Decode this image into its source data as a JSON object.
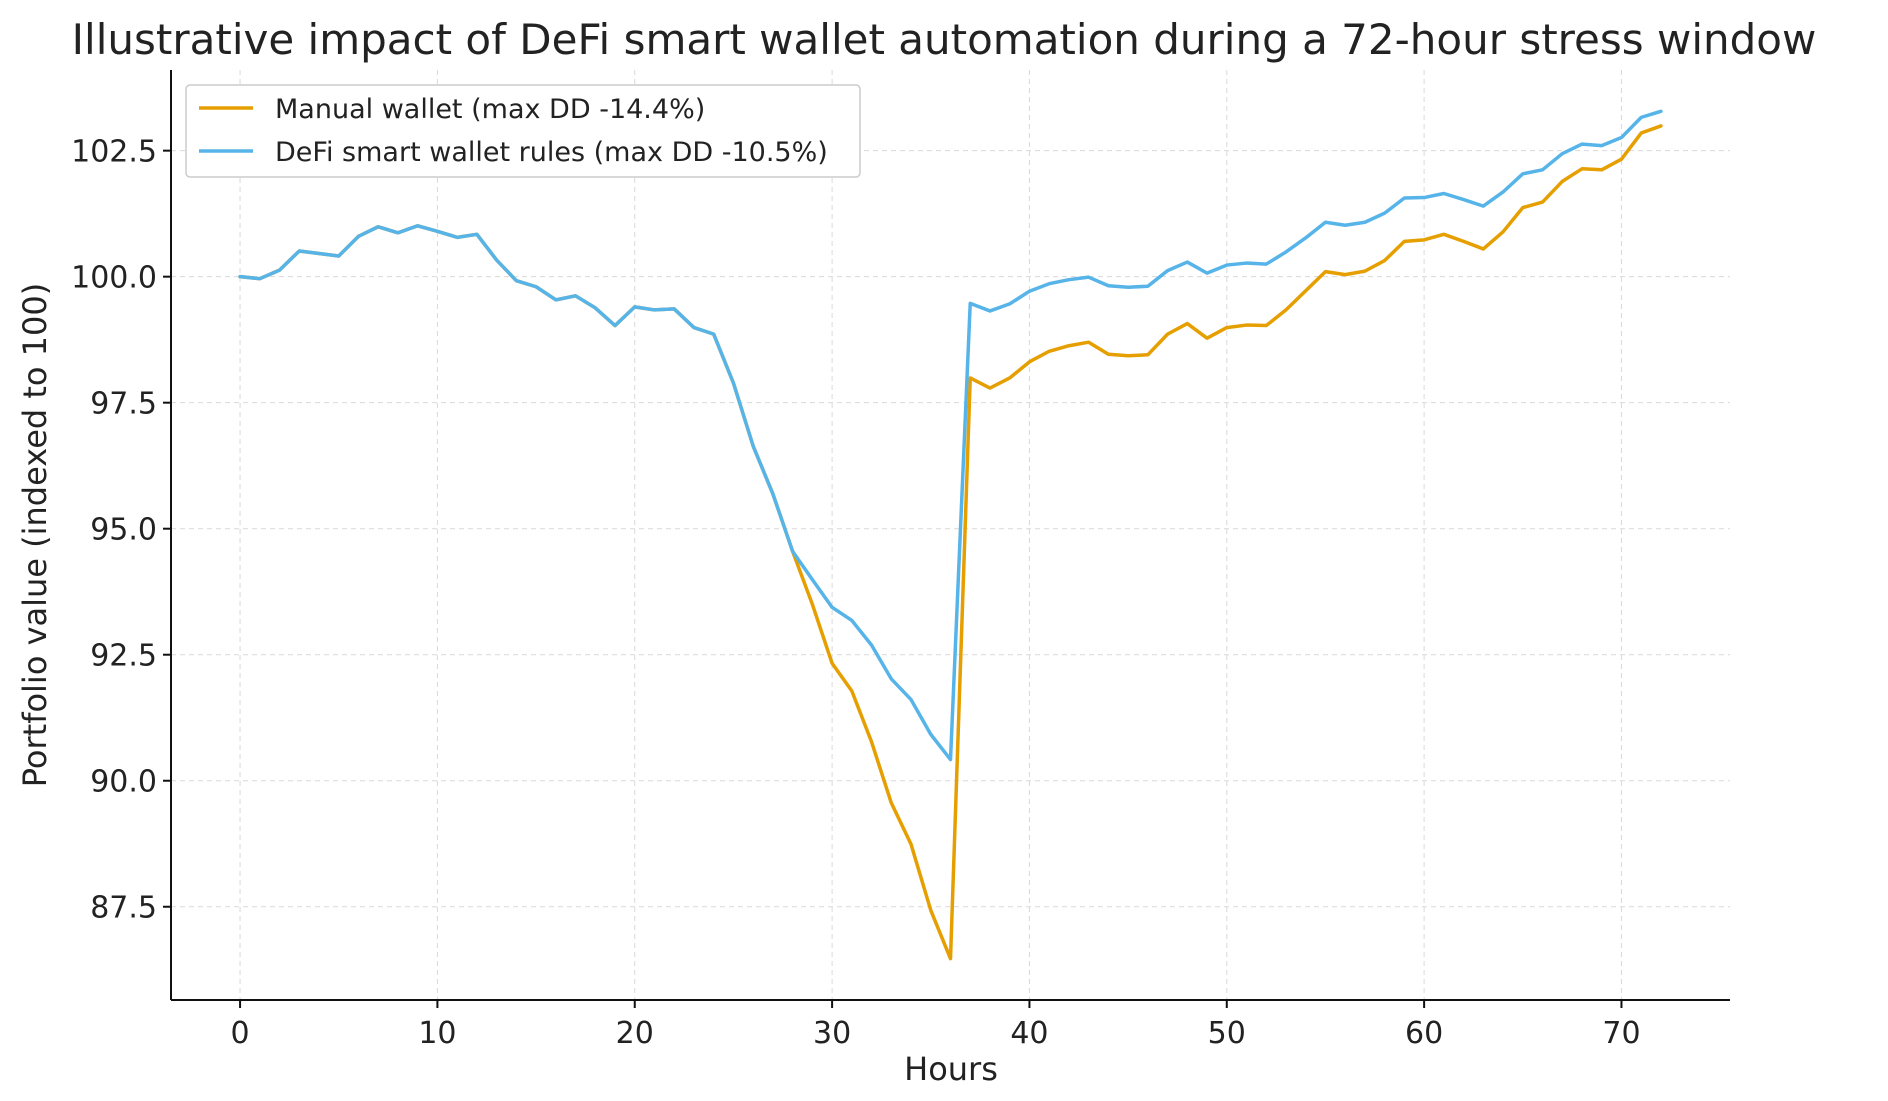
{
  "chart_data": {
    "type": "line",
    "title": "Illustrative impact of DeFi smart wallet automation during a 72-hour stress window",
    "xlabel": "Hours",
    "ylabel": "Portfolio value (indexed to 100)",
    "xlim": [
      -3.5,
      75.5
    ],
    "ylim": [
      85.65,
      104.1
    ],
    "xticks": [
      0,
      10,
      20,
      30,
      40,
      50,
      60,
      70
    ],
    "yticks": [
      87.5,
      90.0,
      92.5,
      95.0,
      97.5,
      100.0,
      102.5
    ],
    "grid": true,
    "legend_position": "top-left",
    "x": [
      0,
      1,
      2,
      3,
      4,
      5,
      6,
      7,
      8,
      9,
      10,
      11,
      12,
      13,
      14,
      15,
      16,
      17,
      18,
      19,
      20,
      21,
      22,
      23,
      24,
      25,
      26,
      27,
      28,
      29,
      30,
      31,
      32,
      33,
      34,
      35,
      36,
      37,
      38,
      39,
      40,
      41,
      42,
      43,
      44,
      45,
      46,
      47,
      48,
      49,
      50,
      51,
      52,
      53,
      54,
      55,
      56,
      57,
      58,
      59,
      60,
      61,
      62,
      63,
      64,
      65,
      66,
      67,
      68,
      69,
      70,
      71,
      72
    ],
    "series": [
      {
        "name": "Manual wallet (max DD -14.4%)",
        "color": "#E69F00",
        "values": [
          100.0,
          99.96,
          100.13,
          100.51,
          100.46,
          100.41,
          100.8,
          100.99,
          100.87,
          101.01,
          100.9,
          100.78,
          100.84,
          100.33,
          99.92,
          99.8,
          99.54,
          99.62,
          99.38,
          99.03,
          99.4,
          99.34,
          99.36,
          98.99,
          98.86,
          97.89,
          96.64,
          95.69,
          94.55,
          93.5,
          92.33,
          91.78,
          90.77,
          89.56,
          88.74,
          87.43,
          86.47,
          97.99,
          97.79,
          97.99,
          98.31,
          98.52,
          98.63,
          98.7,
          98.46,
          98.43,
          98.45,
          98.86,
          99.07,
          98.78,
          98.99,
          99.04,
          99.03,
          99.34,
          99.72,
          100.1,
          100.04,
          100.11,
          100.32,
          100.7,
          100.73,
          100.84,
          100.7,
          100.55,
          100.89,
          101.37,
          101.48,
          101.89,
          102.14,
          102.12,
          102.33,
          102.85,
          102.99
        ]
      },
      {
        "name": "DeFi smart wallet rules (max DD -10.5%)",
        "color": "#56B4E9",
        "values": [
          100.0,
          99.96,
          100.13,
          100.51,
          100.46,
          100.41,
          100.8,
          100.99,
          100.87,
          101.01,
          100.9,
          100.78,
          100.84,
          100.33,
          99.92,
          99.8,
          99.54,
          99.62,
          99.38,
          99.03,
          99.4,
          99.34,
          99.36,
          98.99,
          98.86,
          97.89,
          96.64,
          95.69,
          94.55,
          93.99,
          93.44,
          93.18,
          92.69,
          92.02,
          91.61,
          90.92,
          90.42,
          99.47,
          99.32,
          99.46,
          99.71,
          99.86,
          99.94,
          99.99,
          99.82,
          99.79,
          99.81,
          100.12,
          100.29,
          100.07,
          100.23,
          100.27,
          100.25,
          100.49,
          100.77,
          101.08,
          101.02,
          101.08,
          101.26,
          101.56,
          101.57,
          101.65,
          101.53,
          101.4,
          101.68,
          102.04,
          102.12,
          102.44,
          102.63,
          102.6,
          102.76,
          103.16,
          103.28
        ]
      }
    ]
  }
}
